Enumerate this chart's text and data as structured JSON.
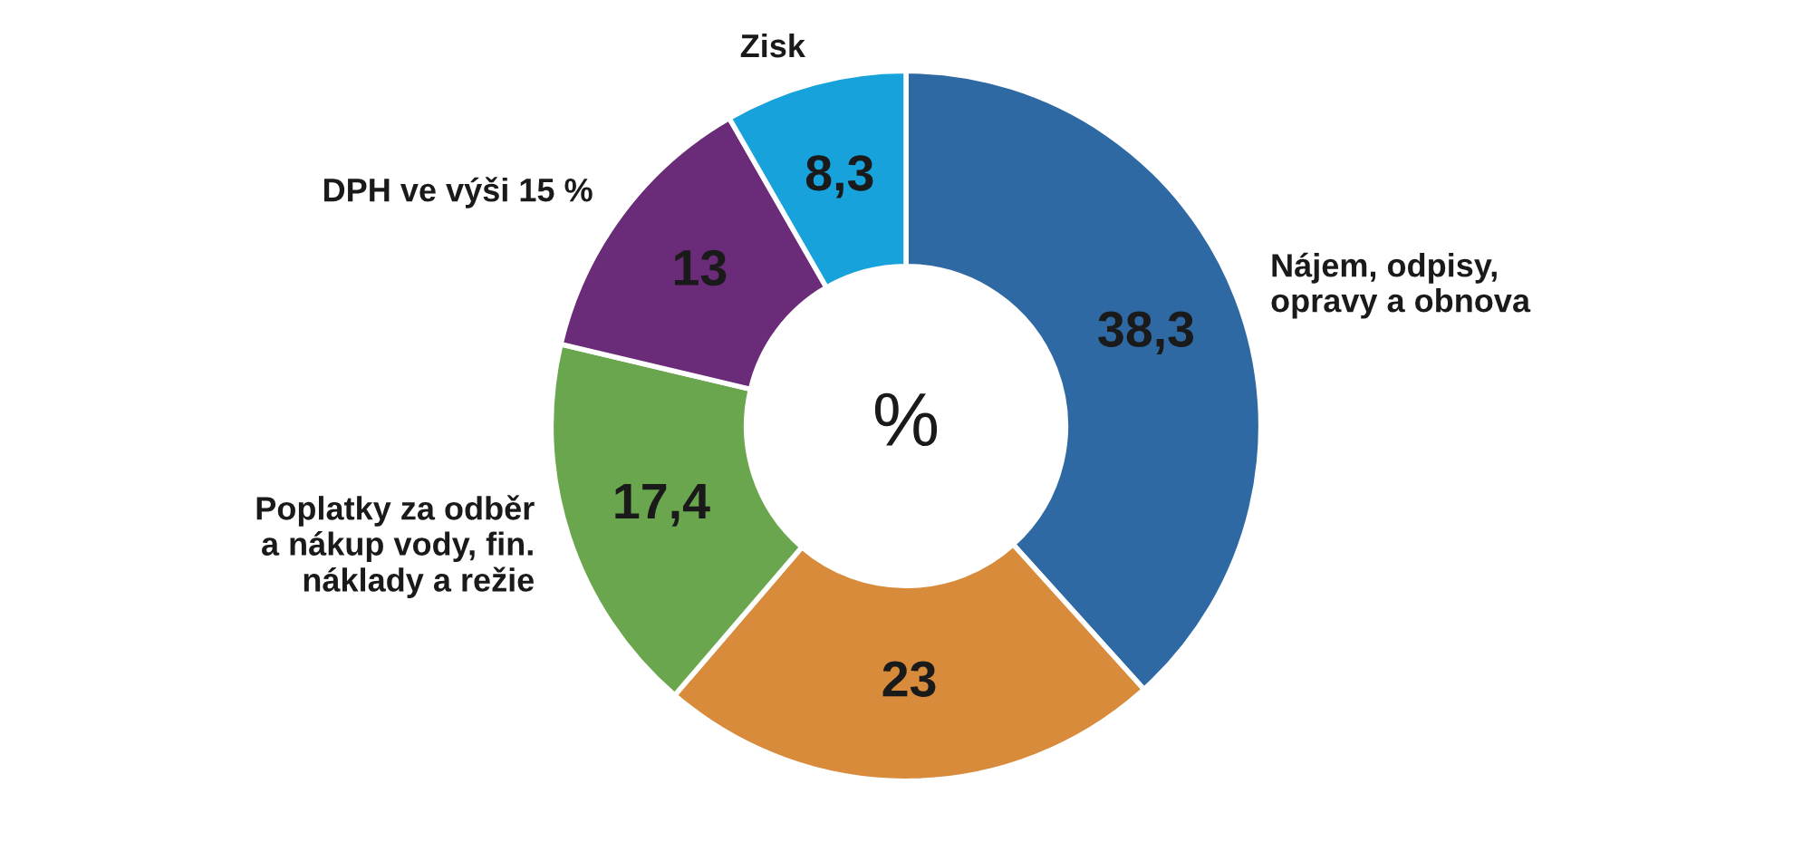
{
  "chart_data": {
    "type": "donut",
    "categories": [
      "Nájem, odpisy,\nopravy a obnova",
      null,
      "Poplatky za odběr\na nákup vody, fin.\nnáklady a režie",
      "DPH ve výši 15 %",
      "Zisk"
    ],
    "values": [
      38.3,
      23,
      17.4,
      13,
      8.3
    ],
    "value_labels": [
      "38,3",
      "23",
      "17,4",
      "13",
      "8,3"
    ],
    "colors": [
      "#2e69a4",
      "#d88b3b",
      "#6aa64e",
      "#6a2b78",
      "#17a2dc"
    ],
    "annotations": [
      "%"
    ],
    "legend": false
  }
}
